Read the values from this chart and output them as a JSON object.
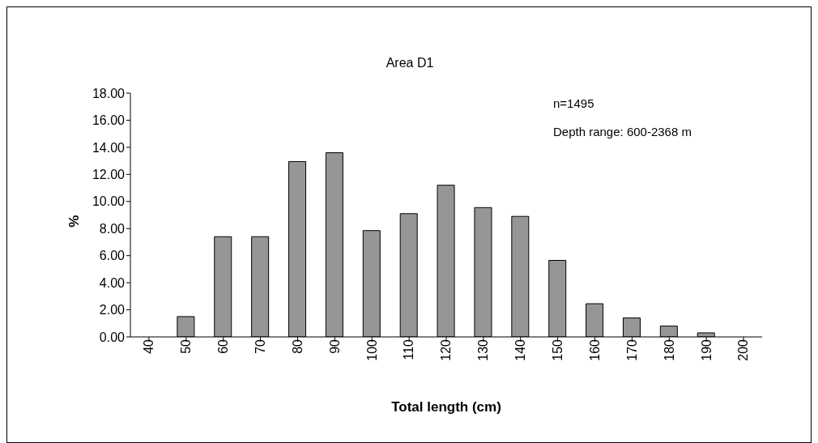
{
  "chart_data": {
    "type": "bar",
    "title": "Area D1",
    "xlabel": "Total length (cm)",
    "ylabel": "%",
    "categories": [
      "40",
      "50",
      "60",
      "70",
      "80",
      "90",
      "100",
      "110",
      "120",
      "130",
      "140",
      "150",
      "160",
      "170",
      "180",
      "190",
      "200"
    ],
    "values": [
      0,
      1.5,
      7.4,
      7.4,
      12.95,
      13.6,
      7.85,
      9.1,
      11.2,
      9.55,
      8.9,
      5.65,
      2.45,
      1.4,
      0.8,
      0.3,
      0
    ],
    "color": "#969696",
    "ylim": [
      0,
      18
    ],
    "yticks": [
      {
        "value": 0,
        "label": "0.00"
      },
      {
        "value": 2,
        "label": "2.00"
      },
      {
        "value": 4,
        "label": "4.00"
      },
      {
        "value": 6,
        "label": "6.00"
      },
      {
        "value": 8,
        "label": "8.00"
      },
      {
        "value": 10,
        "label": "10.00"
      },
      {
        "value": 12,
        "label": "12.00"
      },
      {
        "value": 14,
        "label": "14.00"
      },
      {
        "value": 16,
        "label": "16.00"
      },
      {
        "value": 18,
        "label": "18.00"
      }
    ],
    "annotations": [
      "n=1495",
      "Depth range: 600-2368 m"
    ],
    "grid": false,
    "legend": false
  }
}
